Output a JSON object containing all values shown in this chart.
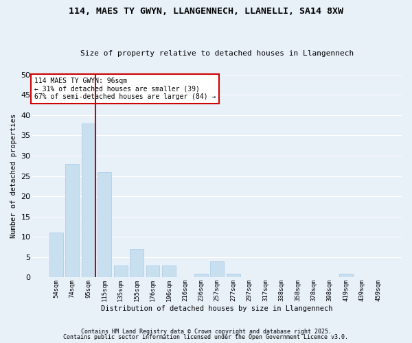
{
  "title1": "114, MAES TY GWYN, LLANGENNECH, LLANELLI, SA14 8XW",
  "title2": "Size of property relative to detached houses in Llangennech",
  "xlabel": "Distribution of detached houses by size in Llangennech",
  "ylabel": "Number of detached properties",
  "categories": [
    "54sqm",
    "74sqm",
    "95sqm",
    "115sqm",
    "135sqm",
    "155sqm",
    "176sqm",
    "196sqm",
    "216sqm",
    "236sqm",
    "257sqm",
    "277sqm",
    "297sqm",
    "317sqm",
    "338sqm",
    "358sqm",
    "378sqm",
    "398sqm",
    "419sqm",
    "439sqm",
    "459sqm"
  ],
  "values": [
    11,
    28,
    38,
    26,
    3,
    7,
    3,
    3,
    0,
    1,
    4,
    1,
    0,
    0,
    0,
    0,
    0,
    0,
    1,
    0,
    0
  ],
  "bar_color": "#c8dff0",
  "bar_edge_color": "#a8c8e8",
  "vline_color": "#cc0000",
  "annotation_text": "114 MAES TY GWYN: 96sqm\n← 31% of detached houses are smaller (39)\n67% of semi-detached houses are larger (84) →",
  "annotation_box_color": "#cc0000",
  "ylim": [
    0,
    50
  ],
  "yticks": [
    0,
    5,
    10,
    15,
    20,
    25,
    30,
    35,
    40,
    45,
    50
  ],
  "background_color": "#e8f0f8",
  "fig_background_color": "#e8f0f8",
  "grid_color": "#ffffff",
  "footer1": "Contains HM Land Registry data © Crown copyright and database right 2025.",
  "footer2": "Contains public sector information licensed under the Open Government Licence v3.0."
}
